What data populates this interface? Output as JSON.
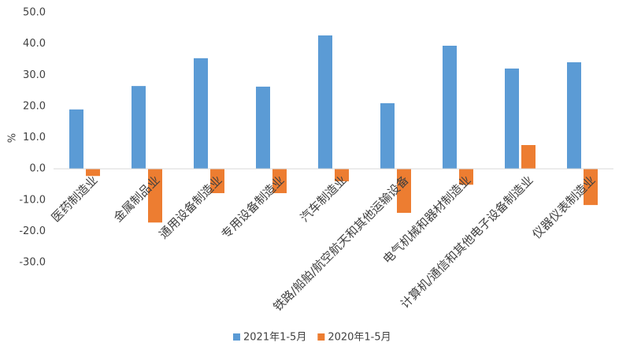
{
  "chart_data": {
    "type": "bar",
    "y_label": "%",
    "categories": [
      "医药制造业",
      "金属制品业",
      "通用设备制造业",
      "专用设备制造业",
      "汽车制造业",
      "铁路/船舶/航空航天和其他运输设备",
      "电气机械和器材制造业",
      "计算机/通信和其他电子设备制造业",
      "仪器仪表制造业"
    ],
    "series": [
      {
        "name": "2021年1-5月",
        "color": "#5b9bd5",
        "values": [
          19.0,
          26.5,
          35.4,
          26.3,
          42.7,
          21.0,
          39.4,
          32.1,
          34.1
        ]
      },
      {
        "name": "2020年1-5月",
        "color": "#ed7d31",
        "values": [
          -2.3,
          -17.2,
          -7.8,
          -7.8,
          -4.0,
          -14.1,
          -5.1,
          7.6,
          -11.6
        ]
      }
    ],
    "ylim": [
      -30,
      50
    ],
    "yticks": [
      {
        "value": -30,
        "label": "-30.0"
      },
      {
        "value": -20,
        "label": "-20.0"
      },
      {
        "value": -10,
        "label": "-10.0"
      },
      {
        "value": 0,
        "label": "0.0"
      },
      {
        "value": 10,
        "label": "10.0"
      },
      {
        "value": 20,
        "label": "20.0"
      },
      {
        "value": 30,
        "label": "30.0"
      },
      {
        "value": 40,
        "label": "40.0"
      },
      {
        "value": 50,
        "label": "50.0"
      }
    ],
    "grid": false,
    "legend": "bottom"
  }
}
